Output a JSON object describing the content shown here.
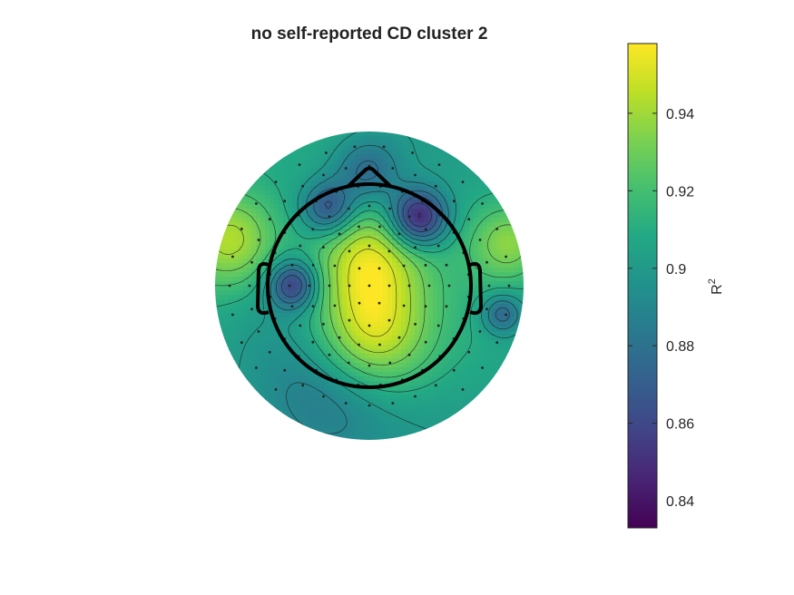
{
  "chart_data": {
    "type": "heatmap",
    "subtype": "scalp-topography",
    "title": "no self-reported CD cluster 2",
    "colorbar": {
      "label": "R",
      "label_superscript": "2",
      "colormap": "viridis",
      "range": [
        0.833,
        0.958
      ],
      "ticks": [
        0.84,
        0.86,
        0.88,
        0.9,
        0.92,
        0.94
      ],
      "tick_labels": [
        "0.84",
        "0.86",
        "0.88",
        "0.9",
        "0.92",
        "0.94"
      ]
    },
    "head_outline": true,
    "contours": true,
    "electrode_markers": true,
    "regions": [
      {
        "name": "frontal-left-minimum",
        "value": 0.862
      },
      {
        "name": "frontal-right-minimum",
        "value": 0.838
      },
      {
        "name": "left-temporal-minimum",
        "value": 0.855
      },
      {
        "name": "frontal-midline",
        "value": 0.875
      },
      {
        "name": "central-midline-maximum",
        "value": 0.948
      },
      {
        "name": "parietal-maximum",
        "value": 0.952
      },
      {
        "name": "left-lateral-maximum",
        "value": 0.945
      },
      {
        "name": "right-lateral-maximum",
        "value": 0.935
      },
      {
        "name": "right-temporal-minimum",
        "value": 0.872
      },
      {
        "name": "occipital-low",
        "value": 0.88
      }
    ]
  }
}
